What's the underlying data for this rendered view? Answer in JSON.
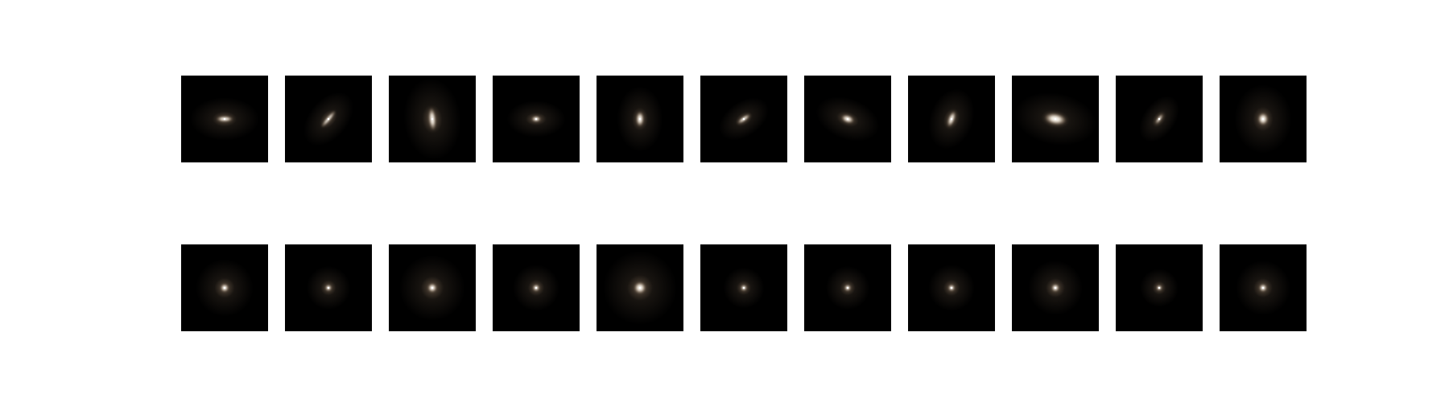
{
  "figure": {
    "rows": [
      {
        "name": "top-row",
        "tiles": [
          {
            "rx": 6.5,
            "ry": 2.2,
            "angle": 0,
            "halo": 1.0
          },
          {
            "rx": 8.5,
            "ry": 1.6,
            "angle": -50,
            "halo": 0.9
          },
          {
            "rx": 2.8,
            "ry": 9.0,
            "angle": -5,
            "halo": 1.25
          },
          {
            "rx": 3.5,
            "ry": 2.2,
            "angle": 0,
            "halo": 0.85
          },
          {
            "rx": 3.0,
            "ry": 5.8,
            "angle": 0,
            "halo": 1.0
          },
          {
            "rx": 6.0,
            "ry": 1.7,
            "angle": -35,
            "halo": 0.8
          },
          {
            "rx": 5.0,
            "ry": 3.0,
            "angle": 20,
            "halo": 0.95
          },
          {
            "rx": 2.5,
            "ry": 6.5,
            "angle": 20,
            "halo": 0.95
          },
          {
            "rx": 8.5,
            "ry": 4.5,
            "angle": 10,
            "halo": 1.2
          },
          {
            "rx": 4.8,
            "ry": 1.3,
            "angle": -55,
            "halo": 0.75
          },
          {
            "rx": 4.0,
            "ry": 4.8,
            "angle": 0,
            "halo": 1.15
          }
        ]
      },
      {
        "name": "bottom-row",
        "tiles": [
          {
            "rx": 3.2,
            "ry": 3.2,
            "angle": 0,
            "halo": 1.05
          },
          {
            "rx": 2.4,
            "ry": 2.4,
            "angle": 0,
            "halo": 0.8
          },
          {
            "rx": 3.5,
            "ry": 3.5,
            "angle": 0,
            "halo": 1.2
          },
          {
            "rx": 2.6,
            "ry": 2.6,
            "angle": 0,
            "halo": 0.85
          },
          {
            "rx": 4.6,
            "ry": 4.6,
            "angle": 0,
            "halo": 1.35
          },
          {
            "rx": 2.3,
            "ry": 2.3,
            "angle": 0,
            "halo": 0.75
          },
          {
            "rx": 2.4,
            "ry": 2.4,
            "angle": 0,
            "halo": 0.8
          },
          {
            "rx": 2.5,
            "ry": 2.5,
            "angle": 0,
            "halo": 0.85
          },
          {
            "rx": 3.0,
            "ry": 3.0,
            "angle": 0,
            "halo": 1.0
          },
          {
            "rx": 2.0,
            "ry": 2.0,
            "angle": 0,
            "halo": 0.7
          },
          {
            "rx": 3.0,
            "ry": 3.0,
            "angle": 0,
            "halo": 1.0
          }
        ]
      }
    ],
    "colors": {
      "background": "#ffffff",
      "tile": "#000000",
      "core": "#fff8ec",
      "glow": "#c8a888"
    }
  }
}
